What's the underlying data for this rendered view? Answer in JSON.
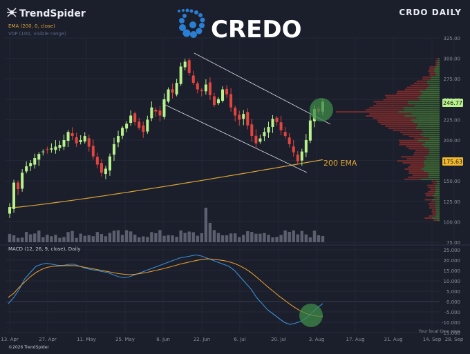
{
  "brand": {
    "name": "TrendSpider",
    "copyright": "©2026 TrendSpider"
  },
  "logo": {
    "text": "CREDO"
  },
  "header": {
    "symbol_title": "CRDO DAILY"
  },
  "indicators": {
    "ema_label": "EMA (200, 0, close)",
    "vp_label": "VbP (100, visible range)",
    "macd_label": "MACD (12, 26, 9, close), Daily",
    "ema_annotation": "200 EMA"
  },
  "badges": {
    "last_price": "246.77",
    "ema_value": "175.63"
  },
  "footer": {
    "timezone_note": "Your local time zone"
  },
  "colors": {
    "background": "#1b1e2b",
    "up": "#b8f28c",
    "down": "#e2453f",
    "ema": "#d9a536",
    "macd_line": "#3b8fd9",
    "signal_line": "#e39a2c",
    "volume": "#5c5f6e",
    "vp_up": "#3f6a34",
    "vp_down": "#7a2b2b",
    "highlight": "#3d8a4a",
    "channel": "#cfd2da"
  },
  "chart_data": [
    {
      "type": "candlestick",
      "title": "CRDO DAILY",
      "x_tick_labels": [
        "13. Apr",
        "27. Apr",
        "11. May",
        "25. May",
        "8. Jun",
        "22. Jun",
        "6. Jul",
        "20. Jul",
        "3. Aug",
        "17. Aug",
        "31. Aug",
        "14. Sep",
        "28. Sep"
      ],
      "y_tick_labels": [
        "325.00",
        "300.00",
        "275.00",
        "250.00",
        "225.00",
        "200.00",
        "175.00",
        "150.00",
        "125.00",
        "100.00",
        "75.00"
      ],
      "ylim": [
        75,
        325
      ],
      "grid": true,
      "close_path": [
        118,
        148,
        140,
        160,
        168,
        172,
        178,
        183,
        186,
        188,
        190,
        192,
        194,
        200,
        210,
        205,
        196,
        200,
        205,
        192,
        180,
        170,
        160,
        165,
        180,
        195,
        205,
        215,
        220,
        230,
        222,
        215,
        210,
        225,
        240,
        235,
        230,
        250,
        262,
        258,
        270,
        290,
        296,
        282,
        270,
        262,
        260,
        268,
        255,
        243,
        250,
        262,
        256,
        240,
        230,
        225,
        232,
        218,
        205,
        196,
        202,
        210,
        216,
        226,
        222,
        212,
        205,
        195,
        185,
        174,
        186,
        200,
        224,
        238,
        235,
        246.77
      ],
      "last_price": 246.77,
      "ema200_value": 175.63,
      "annotations": [
        "200 EMA"
      ]
    },
    {
      "type": "line",
      "title": "MACD (12, 26, 9, close), Daily",
      "y_tick_labels": [
        "25.000",
        "20.000",
        "15.000",
        "10.000",
        "5.000",
        "0.000",
        "-5.000",
        "-10.000",
        "-15.000"
      ],
      "ylim": [
        -15,
        25
      ],
      "series": [
        {
          "values": [
            -1,
            2,
            6,
            11,
            14,
            17,
            18,
            18.5,
            18,
            17.5,
            17.5,
            18,
            18,
            17,
            16,
            15.5,
            15,
            14.5,
            14,
            13,
            12,
            11.5,
            12,
            13,
            14,
            15,
            16,
            17,
            18,
            19,
            20,
            21,
            21.5,
            22,
            22.5,
            22,
            21,
            20,
            19,
            18,
            17,
            15,
            12,
            9,
            6,
            2,
            -1,
            -4,
            -6,
            -8,
            -10,
            -11,
            -10.5,
            -9.5,
            -8,
            -5.5,
            -3,
            -1
          ]
        },
        {
          "values": [
            2,
            4,
            7,
            9.5,
            12,
            14,
            15.5,
            16.5,
            17,
            17.2,
            17.3,
            17.4,
            17.3,
            17,
            16.5,
            16,
            15.5,
            15,
            14.5,
            14,
            13.5,
            13.2,
            13,
            13.2,
            13.6,
            14,
            14.6,
            15.2,
            15.8,
            16.5,
            17.2,
            18,
            18.6,
            19.2,
            19.8,
            20.3,
            20.6,
            20.5,
            20.2,
            19.8,
            19.2,
            18.4,
            17.2,
            15.8,
            14,
            11.8,
            9.5,
            7.2,
            5,
            2.8,
            0.8,
            -1.2,
            -3,
            -4.6,
            -5.8,
            -6.6,
            -7,
            -7.1
          ]
        }
      ]
    }
  ]
}
